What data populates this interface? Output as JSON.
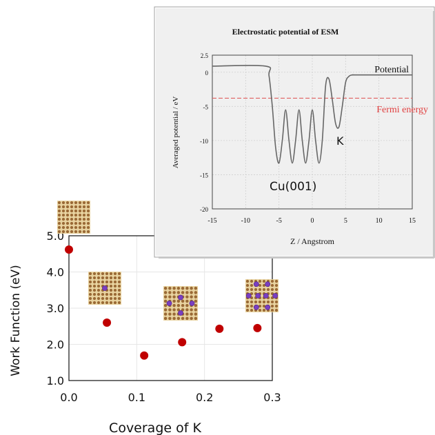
{
  "chart_data": [
    {
      "type": "scatter",
      "title": "",
      "xlabel": "Coverage of K",
      "ylabel": "Work Function (eV)",
      "xlim": [
        0.0,
        0.3
      ],
      "ylim": [
        1.0,
        5.0
      ],
      "x_ticks": [
        "0.0",
        "0.1",
        "0.2",
        "0.3"
      ],
      "y_ticks": [
        "1.0",
        "2.0",
        "3.0",
        "4.0",
        "5.0"
      ],
      "grid": true,
      "marker_color": "#c00000",
      "series": [
        {
          "points": [
            {
              "x": 0.0,
              "y": 4.62
            },
            {
              "x": 0.056,
              "y": 2.6
            },
            {
              "x": 0.111,
              "y": 1.69
            },
            {
              "x": 0.167,
              "y": 2.06
            },
            {
              "x": 0.222,
              "y": 2.43
            },
            {
              "x": 0.278,
              "y": 2.45
            }
          ]
        }
      ]
    },
    {
      "type": "line",
      "title": "Electrostatic potential of ESM",
      "xlabel": "Z / Angstrom",
      "ylabel": "Averaged potential / eV",
      "xlim": [
        -15,
        15
      ],
      "ylim": [
        -20,
        2.5
      ],
      "x_ticks": [
        "-15",
        "-10",
        "-5",
        "0",
        "5",
        "10",
        "15"
      ],
      "y_ticks": [
        "-20",
        "-15",
        "-10",
        "-5",
        "0",
        "2.5"
      ],
      "grid": true,
      "line_color": "#666666",
      "fermi_color": "#e06060",
      "fermi_energy": -3.8,
      "series": [
        {
          "name": "Potential",
          "x": [
            -15,
            -7,
            -6.5,
            -6,
            -5.5,
            -5,
            -4.5,
            -4,
            -3.5,
            -3,
            -2.5,
            -2,
            -1.5,
            -1,
            -0.5,
            0,
            0.5,
            1,
            1.5,
            2,
            2.5,
            3,
            3.5,
            4,
            4.5,
            5,
            5.5,
            6,
            7,
            15
          ],
          "y": [
            0.9,
            0.9,
            -0.5,
            -5,
            -11,
            -13.3,
            -10,
            -5.5,
            -10,
            -13.3,
            -10,
            -5.5,
            -10,
            -13.3,
            -10,
            -5.5,
            -10,
            -13.3,
            -10,
            -2,
            -1,
            -4,
            -7.5,
            -8,
            -5,
            -1.5,
            -0.6,
            -0.4,
            -0.4,
            -0.4
          ]
        }
      ],
      "annotations": {
        "potential": "Potential",
        "fermi": "Fermi energy",
        "k": "K",
        "surface": "Cu(001)"
      }
    }
  ],
  "insets": [
    {
      "name": "clean-surface",
      "k_atoms": 0
    },
    {
      "name": "k-1",
      "k_atoms": 1
    },
    {
      "name": "k-4",
      "k_atoms": 4
    },
    {
      "name": "k-8",
      "k_atoms": 8
    }
  ],
  "colors": {
    "cu_light": "#e8d3a0",
    "cu_dark": "#9a6a36",
    "k_atom": "#7a3fc0",
    "frame_bg": "#f0f0f0"
  }
}
